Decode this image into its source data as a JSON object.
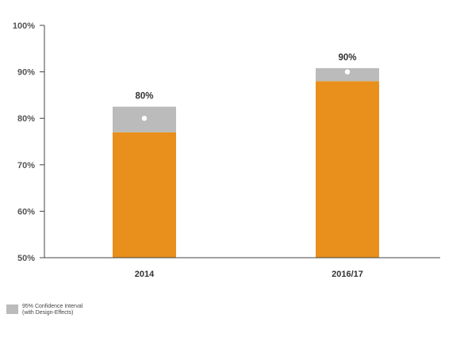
{
  "chart_data": {
    "type": "bar",
    "title": "",
    "xlabel": "",
    "ylabel": "",
    "ylim": [
      50,
      100
    ],
    "yticks": [
      50,
      60,
      70,
      80,
      90,
      100
    ],
    "ytick_labels": [
      "50%",
      "60%",
      "70%",
      "80%",
      "90%",
      "100%"
    ],
    "categories": [
      "2014",
      "2016/17"
    ],
    "values": [
      80,
      90
    ],
    "value_labels": [
      "80%",
      "90%"
    ],
    "ci_lower": [
      77,
      88
    ],
    "ci_upper": [
      82.5,
      90.8
    ],
    "grid": false,
    "legend_position": "bottom-left",
    "colors": {
      "bar": "#E8901B",
      "ci": "#BBBBBB",
      "point": "#FFFFFF",
      "axis": "#444444"
    }
  },
  "legend": {
    "label": "95% Confidence Interval\n(with Design-Effects)"
  }
}
